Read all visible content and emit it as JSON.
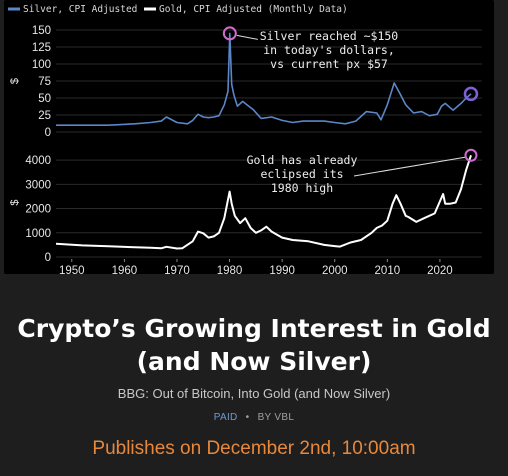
{
  "chart_data": {
    "type": "line",
    "legend": {
      "placement": "top-left",
      "entries": [
        {
          "label": "Silver, CPI Adjusted",
          "color": "#5b86c8"
        },
        {
          "label": "Gold, CPI Adjusted (Monthly Data)",
          "color": "#ffffff"
        }
      ]
    },
    "x_ticks": [
      1950,
      1960,
      1970,
      1980,
      1990,
      2000,
      2010,
      2020
    ],
    "xlim": [
      1947,
      2028
    ],
    "panels": [
      {
        "name": "Silver, CPI Adjusted",
        "ylabel": "$",
        "ylim": [
          0,
          150
        ],
        "y_ticks": [
          0,
          25,
          50,
          75,
          100,
          125,
          150
        ],
        "color": "#5b86c8",
        "x": [
          1947,
          1952,
          1957,
          1962,
          1965,
          1967,
          1968,
          1970,
          1972,
          1973,
          1974,
          1975,
          1976,
          1977,
          1978,
          1979,
          1979.7,
          1980.05,
          1980.4,
          1980.8,
          1981.5,
          1982.5,
          1983.3,
          1984.5,
          1986,
          1988,
          1990,
          1992,
          1994,
          1996,
          1998,
          2000,
          2002,
          2004,
          2006,
          2008,
          2008.8,
          2010,
          2011.3,
          2012.5,
          2013.5,
          2015,
          2016.5,
          2018,
          2019.5,
          2020.3,
          2021,
          2022.5,
          2024,
          2025,
          2025.9
        ],
        "values": [
          10,
          10,
          10,
          12,
          14,
          16,
          22,
          14,
          12,
          17,
          26,
          22,
          21,
          22,
          24,
          40,
          60,
          145,
          70,
          55,
          38,
          45,
          40,
          33,
          20,
          22,
          17,
          14,
          16,
          16,
          16,
          14,
          12,
          16,
          30,
          28,
          18,
          40,
          72,
          55,
          40,
          28,
          30,
          24,
          26,
          38,
          42,
          32,
          42,
          50,
          56
        ],
        "annotations": [
          {
            "lines": [
              "Silver reached ~$150",
              "in today's dollars,",
              "vs current px $57"
            ],
            "x": 1980.05,
            "y": 145
          },
          {
            "marker_only": true,
            "x": 2025.9,
            "y": 56
          }
        ]
      },
      {
        "name": "Gold, CPI Adjusted",
        "ylabel": "$",
        "ylim": [
          0,
          4500
        ],
        "y_ticks": [
          0,
          1000,
          2000,
          3000,
          4000
        ],
        "color": "#ffffff",
        "x": [
          1947,
          1952,
          1957,
          1962,
          1965,
          1967,
          1968,
          1970,
          1971,
          1973,
          1974,
          1975,
          1976,
          1977,
          1978,
          1979,
          1980,
          1980.4,
          1981,
          1982,
          1983,
          1984,
          1985,
          1986,
          1987,
          1988,
          1990,
          1992,
          1995,
          1998,
          2000,
          2001,
          2003,
          2005,
          2007,
          2008,
          2009,
          2010,
          2011,
          2011.7,
          2012.5,
          2013.5,
          2014,
          2015.5,
          2017,
          2019,
          2020.6,
          2021,
          2022,
          2023,
          2024,
          2025,
          2025.9
        ],
        "values": [
          550,
          480,
          440,
          400,
          380,
          360,
          420,
          350,
          360,
          650,
          1050,
          980,
          800,
          850,
          1000,
          1600,
          2700,
          2200,
          1700,
          1400,
          1600,
          1200,
          1000,
          1100,
          1250,
          1050,
          800,
          700,
          650,
          500,
          450,
          430,
          600,
          700,
          1000,
          1200,
          1300,
          1500,
          2200,
          2550,
          2200,
          1700,
          1650,
          1450,
          1600,
          1800,
          2600,
          2200,
          2200,
          2250,
          2800,
          3600,
          4200
        ],
        "annotations": [
          {
            "lines": [
              "Gold has already",
              "eclipsed its",
              "1980 high"
            ],
            "x": 2025.9,
            "y": 4200
          }
        ]
      }
    ]
  },
  "card": {
    "title": "Crypto’s Growing Interest in Gold (and Now Silver)",
    "subtitle": "BBG: Out of Bitcoin, Into Gold (and Now Silver)",
    "paid": "PAID",
    "separator": "•",
    "byline": "BY VBL",
    "publish_note": "Publishes on December 2nd, 10:00am"
  }
}
